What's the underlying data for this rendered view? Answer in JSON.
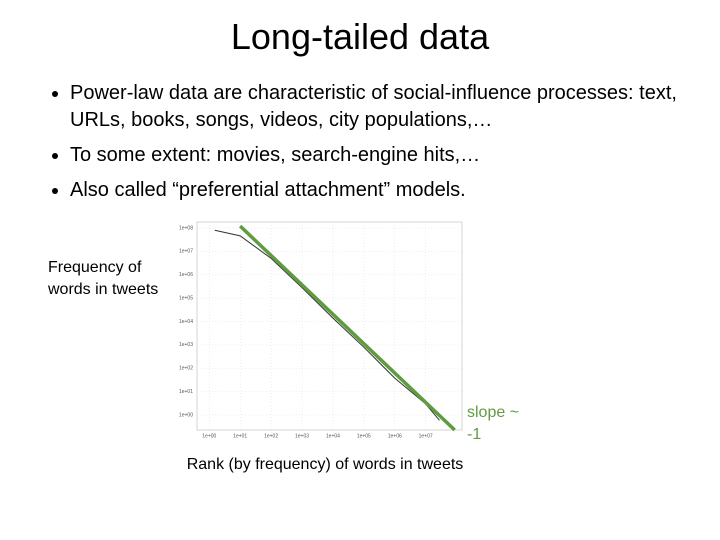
{
  "slide": {
    "title": "Long-tailed data",
    "bullets": [
      "Power-law data are characteristic of social-influence processes: text, URLs, books, songs, videos, city populations,…",
      "To some extent: movies, search-engine hits,…",
      "Also called “preferential attachment” models."
    ]
  },
  "chart_data": {
    "type": "line",
    "xlog": true,
    "ylog": true,
    "grid": true,
    "xlabel": "Rank (by frequency) of words in tweets",
    "ylabel": "Frequency of words in tweets",
    "annotation": "slope ~ -1",
    "annotation_color": "#5e9c3e",
    "xlim": [
      0.4,
      150000000
    ],
    "ylim": [
      0.23,
      180000000
    ],
    "xticks": [
      {
        "value": 1,
        "label": "1e+00"
      },
      {
        "value": 10,
        "label": "1e+01"
      },
      {
        "value": 100,
        "label": "1e+02"
      },
      {
        "value": 1000,
        "label": "1e+03"
      },
      {
        "value": 10000,
        "label": "1e+04"
      },
      {
        "value": 100000,
        "label": "1e+05"
      },
      {
        "value": 1000000,
        "label": "1e+06"
      },
      {
        "value": 10000000,
        "label": "1e+07"
      }
    ],
    "yticks": [
      {
        "value": 100000000,
        "label": "1e+08"
      },
      {
        "value": 10000000,
        "label": "1e+07"
      },
      {
        "value": 1000000,
        "label": "1e+06"
      },
      {
        "value": 100000,
        "label": "1e+05"
      },
      {
        "value": 10000,
        "label": "1e+04"
      },
      {
        "value": 1000,
        "label": "1e+03"
      },
      {
        "value": 100,
        "label": "1e+02"
      },
      {
        "value": 10,
        "label": "1e+01"
      },
      {
        "value": 1,
        "label": "1e+00"
      }
    ],
    "series": [
      {
        "color": "#333333",
        "width": 1,
        "x": [
          1.5,
          10,
          100,
          1000,
          10000,
          100000,
          1000000,
          10000000,
          28000000
        ],
        "values": [
          80000000,
          46000000,
          5000000,
          280000,
          14000,
          800,
          38,
          3,
          0.6
        ]
      },
      {
        "color": "#5e9c3e",
        "width": 3.5,
        "x": [
          10,
          87000000
        ],
        "values": [
          120000000,
          0.23
        ]
      }
    ]
  }
}
